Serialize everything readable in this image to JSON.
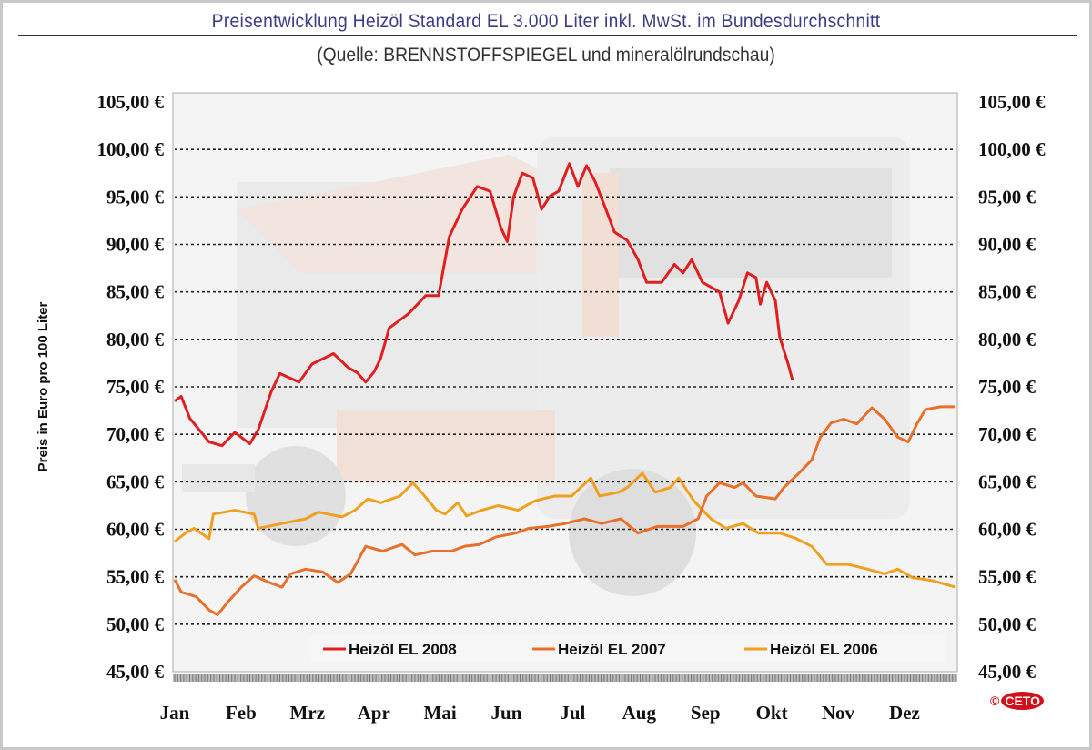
{
  "header": {
    "title": "Preisentwicklung Heizöl Standard EL 3.000 Liter inkl. MwSt. im Bundesdurchschnitt",
    "subtitle": "(Quelle: BRENNSTOFFSPIEGEL und mineralölrundschau)"
  },
  "logo": {
    "copyright": "©",
    "text": "CETO"
  },
  "chart_data": {
    "type": "line",
    "title": "Preisentwicklung Heizöl Standard EL 3.000 Liter inkl. MwSt. im Bundesdurchschnitt",
    "subtitle": "(Quelle: BRENNSTOFFSPIEGEL und mineralölrundschau)",
    "ylabel": "Preis in Euro pro 100 Liter",
    "ylim": [
      45,
      105
    ],
    "yticks": [
      "45,00 €",
      "50,00 €",
      "55,00 €",
      "60,00 €",
      "65,00 €",
      "70,00 €",
      "75,00 €",
      "80,00 €",
      "85,00 €",
      "90,00 €",
      "95,00 €",
      "100,00 €",
      "105,00 €"
    ],
    "ytick_values": [
      45,
      50,
      55,
      60,
      65,
      70,
      75,
      80,
      85,
      90,
      95,
      100,
      105
    ],
    "xticks": [
      "Jan",
      "Feb",
      "Mrz",
      "Apr",
      "Mai",
      "Jun",
      "Jul",
      "Aug",
      "Sep",
      "Okt",
      "Nov",
      "Dez"
    ],
    "xlim": [
      "01-01",
      "12-31"
    ],
    "y_axis_both_sides": true,
    "grid": "horizontal dotted",
    "legend": "bottom",
    "series": [
      {
        "name": "Heizöl EL 2008",
        "color": "#e02020",
        "x": [
          "01-01",
          "01-04",
          "01-08",
          "01-17",
          "01-23",
          "01-29",
          "02-05",
          "02-09",
          "02-15",
          "02-19",
          "02-28",
          "03-06",
          "03-16",
          "03-23",
          "03-27",
          "03-31",
          "04-04",
          "04-07",
          "04-11",
          "04-20",
          "04-28",
          "05-04",
          "05-09",
          "05-15",
          "05-22",
          "05-28",
          "06-02",
          "06-05",
          "06-08",
          "06-12",
          "06-17",
          "06-21",
          "06-25",
          "06-29",
          "07-04",
          "07-08",
          "07-12",
          "07-16",
          "07-21",
          "07-25",
          "07-31",
          "08-05",
          "08-09",
          "08-16",
          "08-22",
          "08-26",
          "08-30",
          "09-04",
          "09-12",
          "09-16",
          "09-21",
          "09-25",
          "09-29",
          "10-01",
          "10-04",
          "10-08",
          "10-10",
          "10-14",
          "10-16"
        ],
        "values": [
          73.5,
          74.0,
          71.7,
          69.2,
          68.8,
          70.2,
          69.0,
          70.5,
          74.5,
          76.4,
          75.5,
          77.4,
          78.5,
          77.0,
          76.5,
          75.5,
          76.6,
          78.0,
          81.2,
          82.7,
          84.6,
          84.6,
          90.8,
          93.7,
          96.1,
          95.6,
          91.8,
          90.3,
          95.0,
          97.5,
          97.0,
          93.7,
          95.1,
          95.6,
          98.5,
          96.1,
          98.3,
          96.6,
          93.7,
          91.3,
          90.4,
          88.4,
          86.0,
          86.0,
          87.9,
          87.0,
          88.4,
          86.0,
          85.0,
          81.7,
          84.1,
          87.0,
          86.5,
          83.7,
          86.0,
          84.1,
          80.3,
          77.4,
          75.7
        ]
      },
      {
        "name": "Heizöl EL 2007",
        "color": "#e8702a",
        "x": [
          "01-01",
          "01-04",
          "01-11",
          "01-17",
          "01-21",
          "01-26",
          "02-01",
          "02-07",
          "02-14",
          "02-20",
          "02-24",
          "03-03",
          "03-11",
          "03-18",
          "03-24",
          "03-31",
          "04-08",
          "04-17",
          "04-23",
          "05-01",
          "05-10",
          "05-16",
          "05-23",
          "05-31",
          "06-09",
          "06-15",
          "06-24",
          "07-02",
          "07-11",
          "07-19",
          "07-28",
          "08-05",
          "08-14",
          "08-20",
          "08-26",
          "09-02",
          "09-06",
          "09-12",
          "09-19",
          "09-23",
          "09-29",
          "10-08",
          "10-12",
          "10-19",
          "10-25",
          "10-29",
          "11-03",
          "11-09",
          "11-15",
          "11-22",
          "11-28",
          "12-04",
          "12-09",
          "12-13",
          "12-17",
          "12-24",
          "12-31"
        ],
        "values": [
          54.7,
          53.4,
          52.9,
          51.5,
          51.0,
          52.4,
          53.9,
          55.1,
          54.4,
          53.9,
          55.3,
          55.8,
          55.5,
          54.4,
          55.3,
          58.2,
          57.7,
          58.4,
          57.3,
          57.7,
          57.7,
          58.2,
          58.4,
          59.2,
          59.6,
          60.1,
          60.3,
          60.6,
          61.1,
          60.6,
          61.1,
          59.6,
          60.3,
          60.3,
          60.3,
          61.1,
          63.5,
          64.9,
          64.4,
          64.9,
          63.5,
          63.2,
          64.4,
          65.9,
          67.3,
          69.7,
          71.2,
          71.6,
          71.1,
          72.8,
          71.6,
          69.7,
          69.2,
          71.1,
          72.6,
          72.9,
          72.9
        ]
      },
      {
        "name": "Heizöl EL 2006",
        "color": "#f0a020",
        "x": [
          "01-01",
          "01-06",
          "01-10",
          "01-17",
          "01-19",
          "01-29",
          "02-07",
          "02-09",
          "02-20",
          "03-03",
          "03-09",
          "03-20",
          "03-26",
          "04-01",
          "04-07",
          "04-16",
          "04-22",
          "04-26",
          "05-03",
          "05-07",
          "05-13",
          "05-17",
          "05-24",
          "06-01",
          "06-10",
          "06-18",
          "06-27",
          "07-05",
          "07-14",
          "07-18",
          "07-27",
          "07-31",
          "08-07",
          "08-13",
          "08-20",
          "08-24",
          "08-31",
          "09-08",
          "09-15",
          "09-23",
          "09-30",
          "10-10",
          "10-17",
          "10-25",
          "11-01",
          "11-11",
          "11-20",
          "11-28",
          "12-04",
          "12-11",
          "12-20",
          "12-28",
          "12-31"
        ],
        "values": [
          58.7,
          59.6,
          60.1,
          59.0,
          61.6,
          62.0,
          61.6,
          60.1,
          60.6,
          61.1,
          61.8,
          61.3,
          62.0,
          63.2,
          62.8,
          63.5,
          64.9,
          63.9,
          62.0,
          61.6,
          62.8,
          61.4,
          62.0,
          62.5,
          62.0,
          63.0,
          63.5,
          63.5,
          65.4,
          63.5,
          63.9,
          64.4,
          65.9,
          63.9,
          64.4,
          65.4,
          63.0,
          61.1,
          60.1,
          60.6,
          59.6,
          59.6,
          59.1,
          58.2,
          56.3,
          56.3,
          55.8,
          55.3,
          55.8,
          54.9,
          54.6,
          54.1,
          53.9
        ]
      }
    ]
  }
}
